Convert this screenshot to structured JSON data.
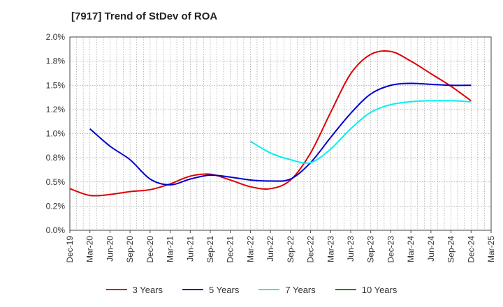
{
  "title": "[7917]  Trend of StDev of ROA",
  "chart_data": {
    "type": "line",
    "title": "[7917]  Trend of StDev of ROA",
    "xlabel": "",
    "ylabel": "",
    "categories": [
      "Dec-19",
      "Mar-20",
      "Jun-20",
      "Sep-20",
      "Dec-20",
      "Mar-21",
      "Jun-21",
      "Sep-21",
      "Dec-21",
      "Mar-22",
      "Jun-22",
      "Sep-22",
      "Dec-22",
      "Mar-23",
      "Jun-23",
      "Sep-23",
      "Dec-23",
      "Mar-24",
      "Jun-24",
      "Sep-24",
      "Dec-24",
      "Mar-25"
    ],
    "yticks": [
      "0.0%",
      "0.2%",
      "0.5%",
      "0.8%",
      "1.0%",
      "1.2%",
      "1.5%",
      "1.8%",
      "2.0%"
    ],
    "ylim": [
      0,
      2.0
    ],
    "grid": true,
    "legend_position": "bottom",
    "series": [
      {
        "name": "3 Years",
        "color": "#dd0000",
        "values": [
          0.43,
          0.36,
          0.37,
          0.4,
          0.42,
          0.48,
          0.56,
          0.58,
          0.52,
          0.45,
          0.43,
          0.52,
          0.8,
          1.22,
          1.62,
          1.82,
          1.85,
          1.75,
          1.62,
          1.49,
          1.34,
          null
        ]
      },
      {
        "name": "5 Years",
        "color": "#0000cc",
        "values": [
          null,
          1.05,
          0.87,
          0.73,
          0.53,
          0.47,
          0.53,
          0.57,
          0.55,
          0.52,
          0.51,
          0.53,
          0.7,
          0.96,
          1.21,
          1.41,
          1.5,
          1.52,
          1.51,
          1.5,
          1.5,
          null
        ]
      },
      {
        "name": "7 Years",
        "color": "#00f0f0",
        "values": [
          null,
          null,
          null,
          null,
          null,
          null,
          null,
          null,
          null,
          0.92,
          0.8,
          0.73,
          0.7,
          0.84,
          1.05,
          1.22,
          1.3,
          1.33,
          1.34,
          1.34,
          1.33,
          null
        ]
      },
      {
        "name": "10 Years",
        "color": "#008800",
        "values": [
          null,
          null,
          null,
          null,
          null,
          null,
          null,
          null,
          null,
          null,
          null,
          null,
          null,
          null,
          null,
          null,
          null,
          null,
          null,
          null,
          null,
          null
        ]
      }
    ]
  }
}
